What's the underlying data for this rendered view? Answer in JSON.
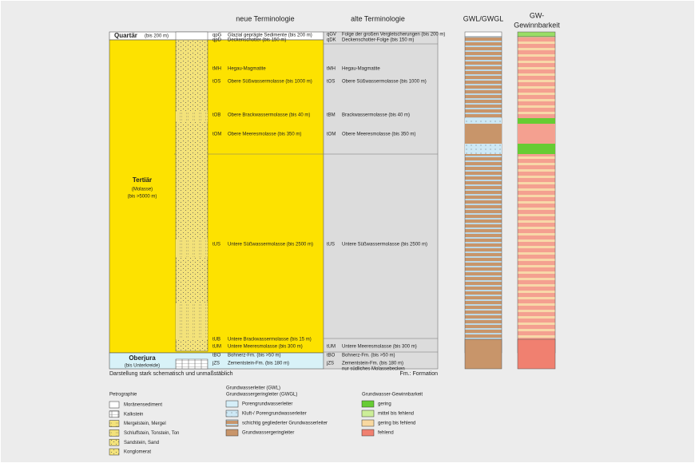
{
  "headers": {
    "new": "neue Terminologie",
    "old": "alte Terminologie",
    "gwl": "GWL/GWGL",
    "gw": [
      "GW-",
      "Gewinnbarkeit"
    ]
  },
  "units": [
    {
      "name": "Quartär",
      "note": [
        "(bis 200 m)"
      ]
    },
    {
      "name": "Tertiär",
      "note": [
        "(Molasse)",
        "(bis >5000 m)"
      ]
    },
    {
      "name": "Oberjura",
      "note": [
        "(bis Unterkreide)"
      ]
    }
  ],
  "new_terminology": [
    {
      "code": "qpG",
      "name": "Glazial geprägte Sedimente (bis 200 m)"
    },
    {
      "code": "qpD",
      "name": "Deckenschotter (bis 150 m)"
    },
    {
      "code": "tMH",
      "name": "Hegau-Magmatite"
    },
    {
      "code": "tOS",
      "name": "Obere Süßwassermolasse (bis 1000 m)"
    },
    {
      "code": "tOB",
      "name": "Obere Brackwassermolasse (bis 40 m)"
    },
    {
      "code": "tOM",
      "name": "Obere Meeresmolasse (bis 350 m)"
    },
    {
      "code": "tUS",
      "name": "Untere Süßwassermolasse (bis 2500 m)"
    },
    {
      "code": "tUB",
      "name": "Untere Brackwassermolasse (bis 15 m)"
    },
    {
      "code": "tUM",
      "name": "Untere Meeresmolasse (bis 300 m)"
    },
    {
      "code": "tBO",
      "name": "Bohnerz-Fm. (bis >50 m)"
    },
    {
      "code": "jZS",
      "name": "Zementstein-Fm. (bis 180 m)"
    }
  ],
  "old_terminology": [
    {
      "code": "qGV",
      "name": "Folge der großen Vergletscherungen (bis 200 m)"
    },
    {
      "code": "qDK",
      "name": "Deckenschotter-Folge (bis 150 m)"
    },
    {
      "code": "tMH",
      "name": "Hegau-Magmatite"
    },
    {
      "code": "tOS",
      "name": "Obere Süßwassermolasse (bis 1000 m)"
    },
    {
      "code": "tBM",
      "name": "Brackwassermolasse (bis 40 m)"
    },
    {
      "code": "tOM",
      "name": "Obere Meeresmolasse (bis 350 m)"
    },
    {
      "code": "tUS",
      "name": "Untere Süßwassermolasse (bis 2500 m)"
    },
    {
      "code": "tUM",
      "name": "Untere Meeresmolasse (bis 300 m)"
    },
    {
      "code": "tBO",
      "name": "Bohnerz-Fm. (bis >50 m)"
    },
    {
      "code": "jZS",
      "name": "Zementstein-Fm. (bis 180 m)"
    }
  ],
  "old_note": "nur südliches Molassebecken",
  "footer": {
    "left": "Darstellung stark schematisch und unmaßstäblich",
    "right": "Fm.: Formation"
  },
  "legend_petro": {
    "title": "Petrographie",
    "items": [
      "Moränensediment",
      "Kalkstein",
      "Mergelstein, Mergel",
      "Schluffstein, Tonstein, Ton",
      "Sandstein, Sand",
      "Konglomerat"
    ]
  },
  "legend_gwl": {
    "title": [
      "Grundwasserleiter (GWL)",
      "Grundwassergeringleiter (GWGL)"
    ],
    "items": [
      "Porengrundwasserleiter",
      "Kluft-/ Porengrundwasserleiter",
      "schichtig gegliederter Grundwasserleiter",
      "Grundwassergeringleiter"
    ]
  },
  "legend_gw": {
    "title": "Grundwasser-Gewinnbarkeit",
    "items": [
      "gering",
      "mittel bis fehlend",
      "gering bis fehlend",
      "fehlend"
    ]
  }
}
